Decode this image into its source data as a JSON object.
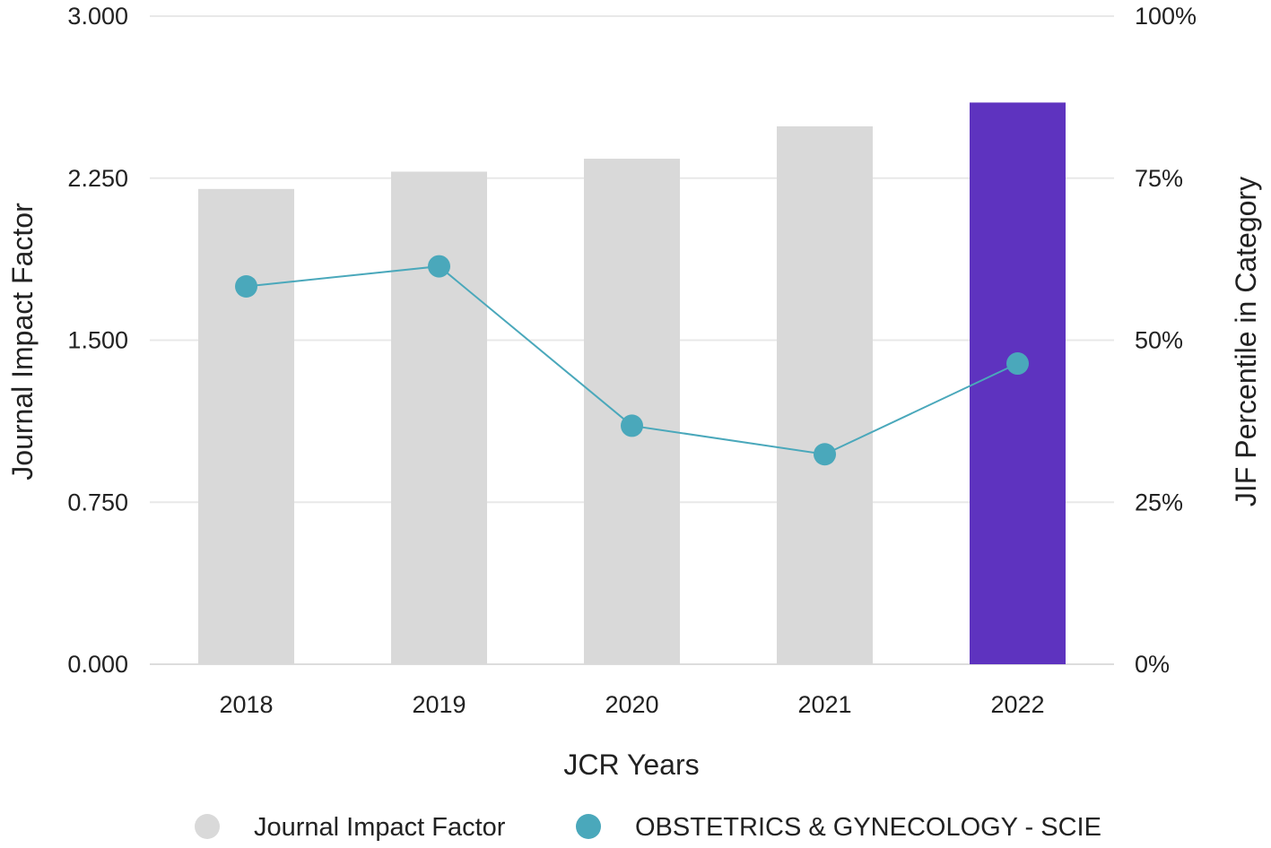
{
  "chart_data": {
    "type": "bar",
    "categories": [
      "2018",
      "2019",
      "2020",
      "2021",
      "2022"
    ],
    "series": [
      {
        "name": "Journal Impact Factor",
        "type": "bar",
        "axis": "left",
        "values": [
          2.2,
          2.28,
          2.34,
          2.49,
          2.6
        ],
        "color": "#d9d9d9",
        "highlight_index": 4,
        "highlight_color": "#5e33bf"
      },
      {
        "name": "OBSTETRICS & GYNECOLOGY - SCIE",
        "type": "line",
        "axis": "right",
        "values": [
          58.3,
          61.4,
          36.8,
          32.4,
          46.4
        ],
        "color": "#4aa8bb"
      }
    ],
    "y_left": {
      "label": "Journal Impact Factor",
      "ylim": [
        0,
        3
      ],
      "ticks": [
        "0.000",
        "0.750",
        "1.500",
        "2.250",
        "3.000"
      ]
    },
    "y_right": {
      "label": "JIF Percentile in Category",
      "ylim": [
        0,
        100
      ],
      "ticks": [
        "0%",
        "25%",
        "50%",
        "75%",
        "100%"
      ]
    },
    "xlabel": "JCR Years",
    "grid": true,
    "legend_position": "bottom"
  }
}
